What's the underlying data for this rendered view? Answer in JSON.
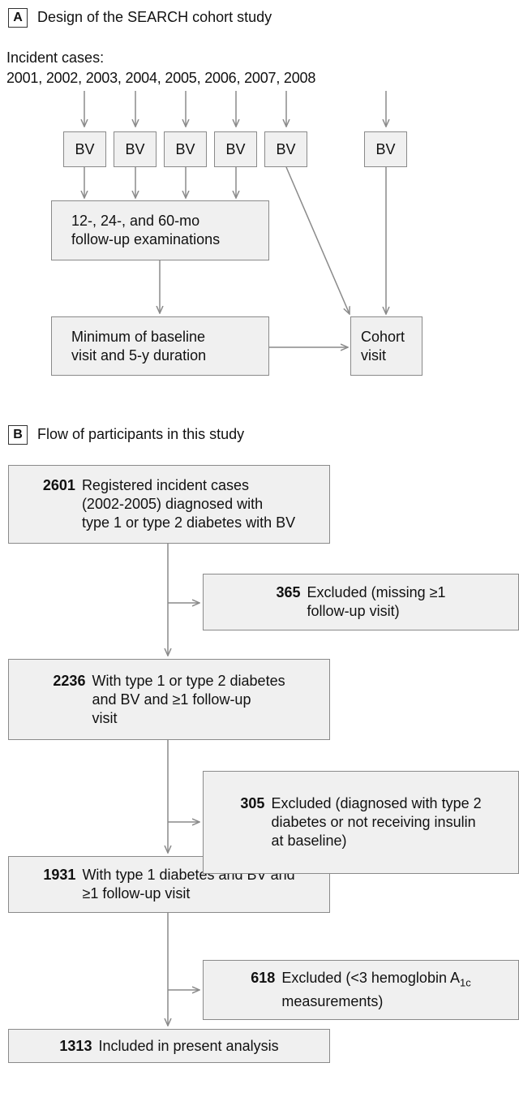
{
  "panel_a": {
    "label": "A",
    "title": "Design of the SEARCH cohort study",
    "incident_cases": "Incident cases:",
    "years": "2001, 2002, 2003, 2004, 2005, 2006, 2007, 2008",
    "bv_boxes": [
      "BV",
      "BV",
      "BV",
      "BV",
      "BV",
      "BV"
    ],
    "followup": [
      "12-, 24-, and 60-mo",
      "follow-up examinations"
    ],
    "minimum": [
      "Minimum of baseline",
      "visit and 5-y duration"
    ],
    "cohort_visit": [
      "Cohort",
      "visit"
    ]
  },
  "panel_b": {
    "label": "B",
    "title": "Flow of participants in this study",
    "steps": [
      {
        "count": 2601,
        "text": [
          "Registered incident cases",
          "(2002-2005) diagnosed with",
          "type 1 or type 2 diabetes with BV"
        ]
      },
      {
        "count": 2236,
        "text": [
          "With type 1 or type 2 diabetes",
          "and BV and ≥1 follow-up",
          "visit"
        ]
      },
      {
        "count": 1931,
        "text": [
          "With type 1 diabetes and BV and",
          "≥1 follow-up visit"
        ]
      },
      {
        "count": 1313,
        "text": [
          "Included in present analysis"
        ]
      }
    ],
    "exclusions": [
      {
        "count": 365,
        "text": [
          "Excluded (missing ≥1",
          "follow-up visit)"
        ]
      },
      {
        "count": 305,
        "text": [
          "Excluded (diagnosed with type 2",
          "diabetes or not receiving insulin",
          "at baseline)"
        ]
      },
      {
        "count": 618,
        "text": [
          "Excluded (<3 hemoglobin A",
          "measurements)"
        ],
        "subscript": "1c"
      }
    ]
  }
}
